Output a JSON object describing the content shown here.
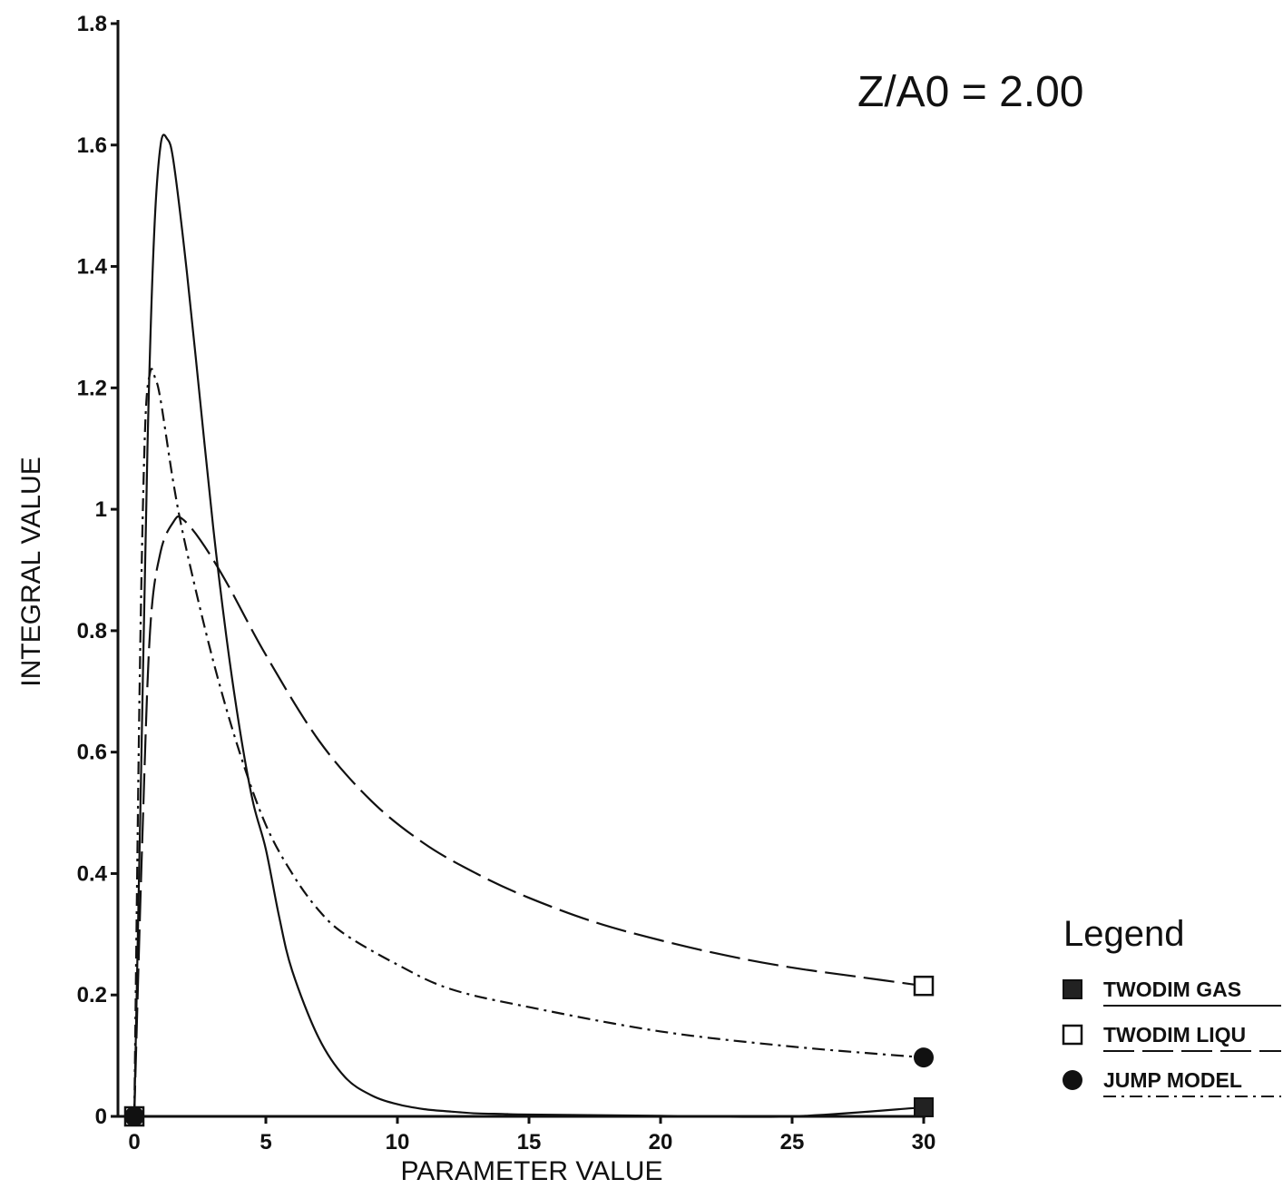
{
  "chart_data": {
    "type": "line",
    "xlabel": "PARAMETER VALUE",
    "ylabel": "INTEGRAL VALUE",
    "annotation": "Z/A0 =  2.00",
    "xlim": [
      0,
      30
    ],
    "ylim": [
      0,
      1.8
    ],
    "x_ticks": [
      0,
      5,
      10,
      15,
      20,
      25,
      30
    ],
    "x_tick_labels": [
      "0",
      "5",
      "10",
      "15",
      "20",
      "25",
      "30"
    ],
    "y_ticks": [
      0,
      0.2,
      0.4,
      0.6,
      0.8,
      1.0,
      1.2,
      1.4,
      1.6,
      1.8
    ],
    "y_tick_labels": [
      "0",
      "0.2",
      "0.4",
      "0.6",
      "0.8",
      "1",
      "1.2",
      "1.4",
      "1.6",
      "1.8"
    ],
    "grid": false,
    "legend": {
      "title": "Legend",
      "position": "bottom-right"
    },
    "series": [
      {
        "name": "TWODIM GAS",
        "line_style": "solid",
        "marker": "filled-square",
        "color": "#111111",
        "x": [
          0,
          0.25,
          0.5,
          0.75,
          1.0,
          1.25,
          1.5,
          2.0,
          2.5,
          3.0,
          3.5,
          4.0,
          4.5,
          5.0,
          5.5,
          6.0,
          7.0,
          8.0,
          9.0,
          10.0,
          11.0,
          12.0,
          13.0,
          14.0,
          15.0,
          20.0,
          25.0,
          30.0
        ],
        "y": [
          0,
          0.55,
          1.1,
          1.45,
          1.6,
          1.61,
          1.57,
          1.39,
          1.18,
          0.97,
          0.79,
          0.64,
          0.52,
          0.44,
          0.33,
          0.24,
          0.13,
          0.065,
          0.035,
          0.02,
          0.012,
          0.008,
          0.005,
          0.004,
          0.003,
          0.001,
          0.0,
          0.015
        ]
      },
      {
        "name": "TWODIM LIQU",
        "line_style": "long-dash",
        "marker": "open-square",
        "color": "#111111",
        "x": [
          0,
          0.3,
          0.6,
          1.0,
          1.5,
          1.8,
          2.5,
          3.5,
          5.0,
          7.0,
          9.0,
          11.0,
          13.0,
          15.0,
          17.5,
          20.0,
          22.5,
          25.0,
          27.5,
          30.0
        ],
        "y": [
          0,
          0.45,
          0.8,
          0.93,
          0.98,
          0.985,
          0.95,
          0.88,
          0.76,
          0.62,
          0.52,
          0.45,
          0.4,
          0.36,
          0.32,
          0.29,
          0.265,
          0.245,
          0.23,
          0.215
        ]
      },
      {
        "name": "JUMP MODEL",
        "line_style": "dash-dot",
        "marker": "filled-circle",
        "color": "#111111",
        "x": [
          0,
          0.2,
          0.4,
          0.6,
          0.8,
          1.0,
          1.5,
          2.0,
          3.0,
          4.0,
          5.0,
          6.0,
          7.0,
          8.0,
          10.0,
          12.0,
          15.0,
          20.0,
          25.0,
          30.0
        ],
        "y": [
          0,
          0.7,
          1.12,
          1.225,
          1.215,
          1.18,
          1.04,
          0.93,
          0.75,
          0.6,
          0.48,
          0.4,
          0.34,
          0.3,
          0.25,
          0.21,
          0.18,
          0.14,
          0.115,
          0.097
        ]
      }
    ]
  }
}
